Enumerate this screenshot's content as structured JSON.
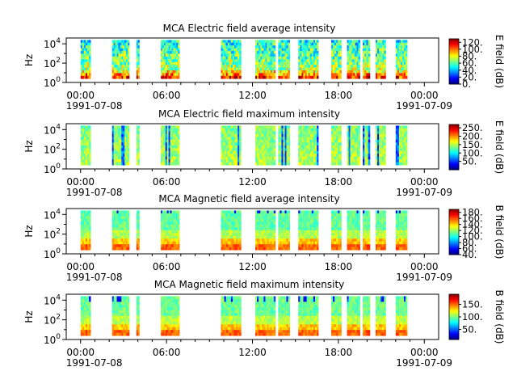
{
  "figure": {
    "date_start": "1991-07-08",
    "date_end": "1991-07-09"
  },
  "chart_data": [
    {
      "type": "heatmap",
      "title": "MCA  Electric field average intensity",
      "ylabel": "Hz",
      "colorbar_label": "E field (dB)",
      "colorbar_ticks": [
        "0.",
        "20.",
        "40.",
        "60.",
        "80.",
        "100.",
        "120."
      ],
      "colorbar_range": [
        0,
        130
      ],
      "profile": "eavg",
      "x_ticks": [
        "00:00",
        "06:00",
        "12:00",
        "18:00",
        "00:00"
      ],
      "x_range_hours": [
        -1,
        25
      ],
      "y_ticks": [
        [
          "10",
          "0"
        ],
        [
          "10",
          "2"
        ],
        [
          "10",
          "4"
        ]
      ],
      "y_range_log10": [
        0,
        4.6
      ]
    },
    {
      "type": "heatmap",
      "title": "MCA  Electric field maximum intensity",
      "ylabel": "Hz",
      "colorbar_label": "E field (dB)",
      "colorbar_ticks": [
        "50.",
        "100.",
        "150.",
        "200.",
        "250."
      ],
      "colorbar_range": [
        0,
        270
      ],
      "profile": "emax",
      "x_ticks": [
        "00:00",
        "06:00",
        "12:00",
        "18:00",
        "00:00"
      ],
      "x_range_hours": [
        -1,
        25
      ],
      "y_ticks": [
        [
          "10",
          "0"
        ],
        [
          "10",
          "2"
        ],
        [
          "10",
          "4"
        ]
      ],
      "y_range_log10": [
        0,
        4.6
      ]
    },
    {
      "type": "heatmap",
      "title": "MCA  Magnetic field average intensity",
      "ylabel": "Hz",
      "colorbar_label": "B field (dB)",
      "colorbar_ticks": [
        "40.",
        "60.",
        "80.",
        "100.",
        "120.",
        "140.",
        "160.",
        "180."
      ],
      "colorbar_range": [
        40,
        190
      ],
      "profile": "bavg",
      "x_ticks": [
        "00:00",
        "06:00",
        "12:00",
        "18:00",
        "00:00"
      ],
      "x_range_hours": [
        -1,
        25
      ],
      "y_ticks": [
        [
          "10",
          "0"
        ],
        [
          "10",
          "2"
        ],
        [
          "10",
          "4"
        ]
      ],
      "y_range_log10": [
        0,
        4.6
      ]
    },
    {
      "type": "heatmap",
      "title": "MCA  Magnetic field maximum intensity",
      "ylabel": "Hz",
      "colorbar_label": "B field (dB)",
      "colorbar_ticks": [
        "50.",
        "100.",
        "150."
      ],
      "colorbar_range": [
        10,
        190
      ],
      "profile": "bmax",
      "x_ticks": [
        "00:00",
        "06:00",
        "12:00",
        "18:00",
        "00:00"
      ],
      "x_range_hours": [
        -1,
        25
      ],
      "y_ticks": [
        [
          "10",
          "0"
        ],
        [
          "10",
          "2"
        ],
        [
          "10",
          "4"
        ]
      ],
      "y_range_log10": [
        0,
        4.6
      ]
    }
  ],
  "data_segments_hours": [
    [
      0.0,
      0.7
    ],
    [
      2.2,
      3.4
    ],
    [
      3.9,
      4.1
    ],
    [
      5.6,
      6.9
    ],
    [
      9.8,
      11.2
    ],
    [
      12.2,
      13.6
    ],
    [
      13.8,
      14.6
    ],
    [
      15.2,
      16.6
    ],
    [
      17.5,
      18.2
    ],
    [
      18.6,
      19.5
    ],
    [
      19.7,
      20.2
    ],
    [
      20.6,
      21.3
    ],
    [
      22.0,
      22.8
    ]
  ]
}
